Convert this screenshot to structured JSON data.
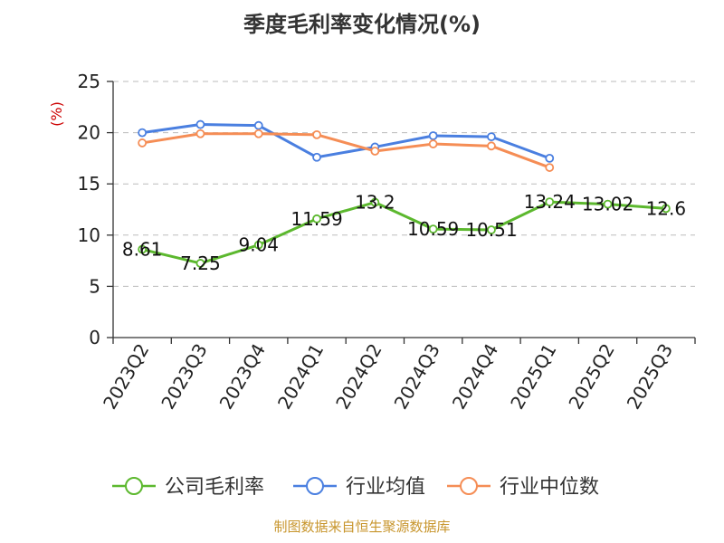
{
  "chart_data": {
    "type": "line",
    "title": "季度毛利率变化情况(%)",
    "unit_label": "(%)",
    "categories": [
      "2023Q2",
      "2023Q3",
      "2023Q4",
      "2024Q1",
      "2024Q2",
      "2024Q3",
      "2024Q4",
      "2025Q1",
      "2025Q2",
      "2025Q3"
    ],
    "ylim": [
      0,
      25
    ],
    "yticks": [
      0,
      5,
      10,
      15,
      20,
      25
    ],
    "grid": true,
    "legend_position": "bottom",
    "series": [
      {
        "name": "公司毛利率",
        "color": "#5cb82e",
        "values": [
          8.61,
          7.25,
          9.04,
          11.59,
          13.2,
          10.59,
          10.51,
          13.24,
          13.02,
          12.6
        ],
        "labels": [
          "8.61",
          "7.25",
          "9.04",
          "11.59",
          "13.2",
          "10.59",
          "10.51",
          "13.24",
          "13.02",
          "12.6"
        ]
      },
      {
        "name": "行业均值",
        "color": "#4a7fe0",
        "values": [
          20.0,
          20.8,
          20.7,
          17.6,
          18.6,
          19.7,
          19.6,
          17.5,
          null,
          null
        ]
      },
      {
        "name": "行业中位数",
        "color": "#f58d55",
        "values": [
          19.0,
          19.9,
          19.9,
          19.8,
          18.2,
          18.9,
          18.7,
          16.6,
          null,
          null
        ]
      }
    ],
    "source": "制图数据来自恒生聚源数据库"
  }
}
